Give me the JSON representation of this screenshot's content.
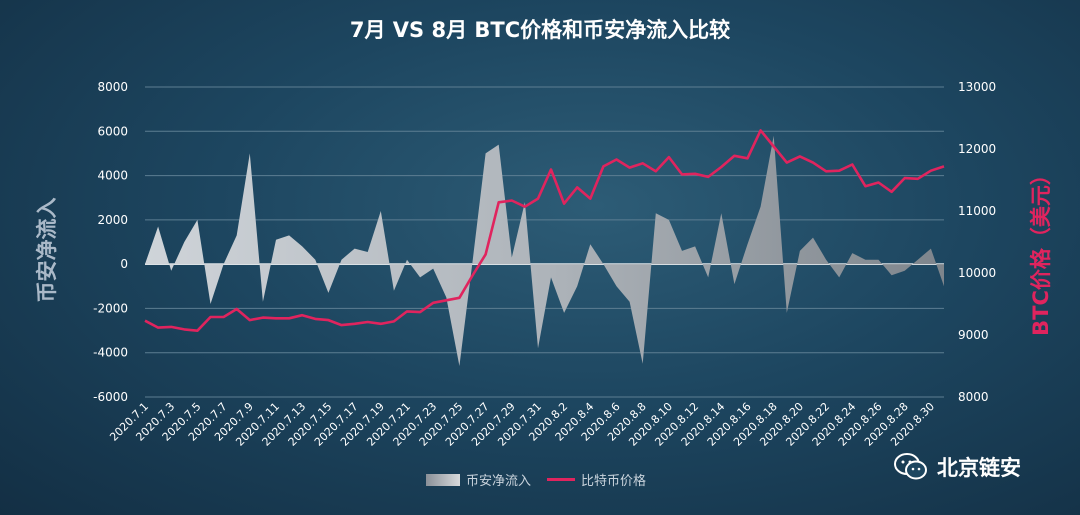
{
  "chart_data": {
    "type": "area+line",
    "title": "7月 VS 8月 BTC价格和币安净流入比较",
    "y_left_label": "币安净流入",
    "y_right_label": "BTC价格（美元）",
    "y_left_range": [
      -6000,
      8000
    ],
    "y_left_ticks": [
      "8000",
      "6000",
      "4000",
      "2000",
      "0",
      "-2000",
      "-4000",
      "-6000"
    ],
    "y_right_range": [
      8000,
      13000
    ],
    "y_right_ticks": [
      "13000",
      "12000",
      "11000",
      "10000",
      "9000",
      "8000"
    ],
    "x_tick_labels": [
      "2020.7.1",
      "2020.7.3",
      "2020.7.5",
      "2020.7.7",
      "2020.7.9",
      "2020.7.11",
      "2020.7.13",
      "2020.7.15",
      "2020.7.17",
      "2020.7.19",
      "2020.7.21",
      "2020.7.23",
      "2020.7.25",
      "2020.7.27",
      "2020.7.29",
      "2020.7.31",
      "2020.8.2",
      "2020.8.4",
      "2020.8.6",
      "2020.8.8",
      "2020.8.10",
      "2020.8.12",
      "2020.8.14",
      "2020.8.16",
      "2020.8.18",
      "2020.8.20",
      "2020.8.22",
      "2020.8.24",
      "2020.8.26",
      "2020.8.28",
      "2020.8.30"
    ],
    "series": [
      {
        "name": "币安净流入",
        "type": "area",
        "values": [
          0,
          1700,
          -300,
          1000,
          2000,
          -1800,
          0,
          1300,
          5000,
          -1700,
          1100,
          1300,
          800,
          200,
          -1300,
          200,
          700,
          550,
          2400,
          -1200,
          200,
          -600,
          -200,
          -1500,
          -4600,
          100,
          5000,
          5400,
          300,
          2800,
          -3800,
          -600,
          -2200,
          -1000,
          900,
          0,
          -1000,
          -1700,
          -4500,
          2300,
          2000,
          600,
          800,
          -600,
          2300,
          -900,
          900,
          2600,
          5800,
          -2200,
          600,
          1200,
          200,
          -600,
          500,
          200,
          200,
          -500,
          -300,
          200,
          700,
          -1000
        ]
      },
      {
        "name": "比特币价格",
        "type": "line",
        "color": "#e0245e",
        "values": [
          9230,
          9120,
          9130,
          9090,
          9070,
          9290,
          9290,
          9420,
          9240,
          9280,
          9270,
          9270,
          9320,
          9260,
          9240,
          9160,
          9180,
          9210,
          9180,
          9220,
          9380,
          9370,
          9520,
          9560,
          9600,
          9960,
          10300,
          11140,
          11170,
          11070,
          11200,
          11670,
          11120,
          11380,
          11200,
          11720,
          11830,
          11700,
          11770,
          11640,
          11870,
          11590,
          11600,
          11550,
          11710,
          11890,
          11850,
          12300,
          12040,
          11780,
          11880,
          11780,
          11640,
          11650,
          11750,
          11400,
          11460,
          11310,
          11530,
          11520,
          11650,
          11720
        ]
      }
    ],
    "legend": [
      "币安净流入",
      "比特币价格"
    ],
    "legend_position": "bottom",
    "grid": "horizontal"
  },
  "watermark": {
    "text": "北京链安",
    "icon": "wechat-icon"
  }
}
